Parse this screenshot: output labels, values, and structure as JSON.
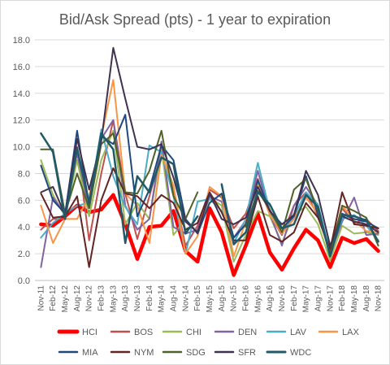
{
  "chart_data": {
    "type": "line",
    "title": "Bid/Ask Spread (pts) - 1 year to expiration",
    "xlabel": "",
    "ylabel": "",
    "ylim": [
      0,
      18
    ],
    "ytick_step": 2,
    "ytick_labels": [
      "0.0",
      "2.0",
      "4.0",
      "6.0",
      "8.0",
      "10.0",
      "12.0",
      "14.0",
      "16.0",
      "18.0"
    ],
    "legend_position": "bottom",
    "grid": true,
    "x": [
      "Nov-11",
      "Feb-12",
      "May-12",
      "Aug-12",
      "Nov-12",
      "Feb-13",
      "May-13",
      "Aug-13",
      "Nov-13",
      "Feb-14",
      "May-14",
      "Aug-14",
      "Nov-14",
      "Feb-15",
      "May-15",
      "Aug-15",
      "Nov-15",
      "Feb-16",
      "May-16",
      "Aug-16",
      "Nov-16",
      "Feb-17",
      "May-17",
      "Aug-17",
      "Nov-17",
      "Feb-18",
      "May-18",
      "Aug-18",
      "Nov-18"
    ],
    "series": [
      {
        "name": "HCI",
        "color": "#ff0000",
        "width": 4.5,
        "values": [
          4.2,
          4.1,
          4.8,
          5.6,
          5.1,
          5.3,
          6.4,
          4.2,
          1.6,
          4.0,
          4.1,
          5.2,
          2.2,
          1.4,
          5.4,
          3.6,
          0.4,
          2.6,
          5.0,
          2.1,
          0.8,
          2.4,
          3.8,
          3.0,
          1.0,
          3.2,
          2.8,
          3.1,
          2.2
        ]
      },
      {
        "name": "BOS",
        "color": "#c0504d",
        "width": 2,
        "values": [
          3.8,
          4.6,
          4.6,
          10.0,
          3.0,
          8.0,
          12.0,
          6.5,
          3.1,
          6.3,
          9.6,
          6.8,
          2.6,
          4.1,
          6.8,
          6.2,
          3.9,
          5.0,
          7.6,
          4.9,
          3.4,
          5.6,
          6.6,
          4.8,
          2.5,
          5.4,
          4.3,
          4.6,
          3.7
        ]
      },
      {
        "name": "CHI",
        "color": "#9bbb59",
        "width": 2,
        "values": [
          9.0,
          6.4,
          4.8,
          9.0,
          4.8,
          9.0,
          11.2,
          4.2,
          5.8,
          4.6,
          9.8,
          3.4,
          4.6,
          3.6,
          6.2,
          5.6,
          1.4,
          3.4,
          5.2,
          4.8,
          2.8,
          5.0,
          5.5,
          4.2,
          1.5,
          4.1,
          3.5,
          3.6,
          3.4
        ]
      },
      {
        "name": "DEN",
        "color": "#8064a2",
        "width": 2,
        "values": [
          1.0,
          6.2,
          5.0,
          9.5,
          5.4,
          10.6,
          12.0,
          5.6,
          3.8,
          4.6,
          10.4,
          4.0,
          3.5,
          3.8,
          6.3,
          5.9,
          3.2,
          4.5,
          8.2,
          5.0,
          2.6,
          5.6,
          7.0,
          5.6,
          2.0,
          4.4,
          6.2,
          3.4,
          3.5
        ]
      },
      {
        "name": "LAV",
        "color": "#4bacc6",
        "width": 2,
        "values": [
          3.2,
          4.3,
          5.0,
          5.6,
          5.8,
          11.3,
          7.8,
          5.5,
          4.2,
          10.1,
          9.6,
          6.3,
          2.0,
          5.9,
          6.1,
          5.2,
          2.8,
          4.6,
          8.8,
          5.2,
          3.5,
          4.8,
          6.6,
          5.7,
          2.1,
          4.6,
          4.9,
          4.1,
          3.0
        ]
      },
      {
        "name": "LAX",
        "color": "#f79646",
        "width": 2,
        "values": [
          5.6,
          2.8,
          4.6,
          4.6,
          6.3,
          10.7,
          15.0,
          6.5,
          5.6,
          2.8,
          9.4,
          7.1,
          2.0,
          3.3,
          7.0,
          6.3,
          1.8,
          4.4,
          7.3,
          4.9,
          3.5,
          4.6,
          6.2,
          5.0,
          1.9,
          5.6,
          4.5,
          3.7,
          3.6
        ]
      },
      {
        "name": "MIA",
        "color": "#1f497d",
        "width": 2,
        "values": [
          8.6,
          6.0,
          5.0,
          11.2,
          5.6,
          10.8,
          10.2,
          12.4,
          4.8,
          6.8,
          10.1,
          9.0,
          4.6,
          3.5,
          5.8,
          6.5,
          3.2,
          4.2,
          7.5,
          5.2,
          3.9,
          4.8,
          7.8,
          4.9,
          2.1,
          5.0,
          4.6,
          4.4,
          3.9
        ]
      },
      {
        "name": "NYM",
        "color": "#632423",
        "width": 2,
        "values": [
          6.5,
          4.7,
          4.8,
          6.3,
          1.0,
          6.0,
          8.4,
          6.5,
          6.3,
          5.4,
          6.4,
          5.8,
          3.8,
          4.3,
          6.6,
          5.1,
          3.0,
          3.0,
          6.3,
          3.4,
          2.9,
          3.6,
          5.8,
          4.7,
          2.3,
          6.6,
          4.2,
          4.1,
          3.9
        ]
      },
      {
        "name": "SDG",
        "color": "#4f6228",
        "width": 2,
        "values": [
          9.8,
          9.8,
          5.0,
          8.0,
          5.4,
          10.2,
          11.0,
          6.6,
          6.5,
          8.2,
          11.2,
          6.3,
          4.6,
          6.6,
          null,
          null,
          null,
          4.0,
          6.7,
          5.3,
          3.6,
          6.8,
          7.6,
          5.2,
          2.0,
          5.6,
          5.2,
          4.7,
          2.6
        ]
      },
      {
        "name": "SFR",
        "color": "#403151",
        "width": 2,
        "values": [
          6.6,
          7.0,
          4.9,
          10.6,
          6.8,
          10.4,
          17.4,
          13.6,
          10.0,
          9.8,
          10.2,
          7.7,
          4.4,
          3.6,
          6.5,
          4.6,
          4.2,
          4.7,
          7.0,
          5.2,
          4.2,
          4.9,
          8.2,
          6.4,
          2.6,
          4.8,
          4.4,
          4.2,
          3.6
        ]
      },
      {
        "name": "WDC",
        "color": "#215968",
        "width": 2.5,
        "values": [
          11.0,
          9.6,
          4.6,
          9.9,
          5.8,
          11.0,
          9.8,
          2.8,
          7.8,
          6.6,
          9.2,
          8.7,
          3.5,
          4.8,
          null,
          7.2,
          2.7,
          3.6,
          6.6,
          5.7,
          3.9,
          4.2,
          6.4,
          5.5,
          1.8,
          4.9,
          4.8,
          4.5,
          2.9
        ]
      }
    ]
  }
}
